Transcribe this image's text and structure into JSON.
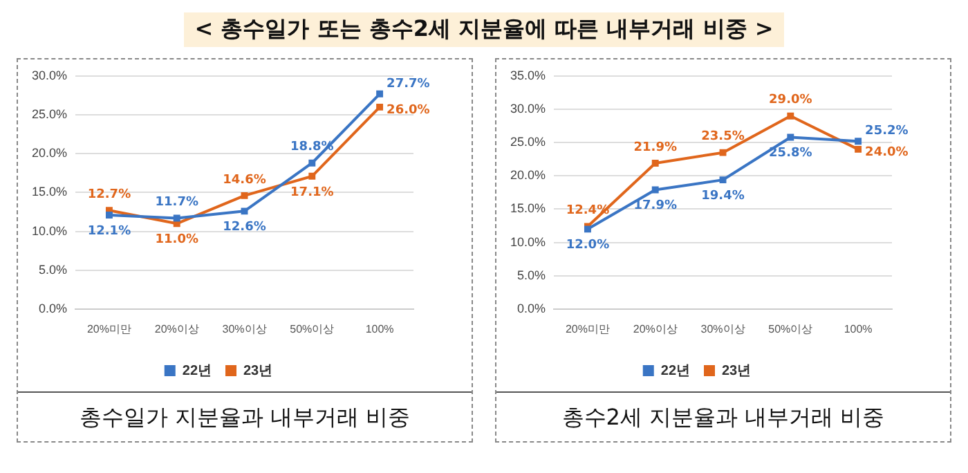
{
  "chart_data": [
    {
      "type": "line",
      "title": "< 총수일가 또는 총수2세 지분율에 따른 내부거래 비중 >",
      "xlabel": "총수일가 지분율과 내부거래 비중",
      "categories": [
        "20%미만",
        "20%이상",
        "30%이상",
        "50%이상",
        "100%"
      ],
      "series": [
        {
          "name": "22년",
          "color": "#3a75c4",
          "values": [
            12.1,
            11.7,
            12.6,
            18.8,
            27.7
          ],
          "value_labels": [
            "12.1%",
            "11.7%",
            "12.6%",
            "18.8%",
            "27.7%"
          ]
        },
        {
          "name": "23년",
          "color": "#e0661c",
          "values": [
            12.7,
            11.0,
            14.6,
            17.1,
            26.0
          ],
          "value_labels": [
            "12.7%",
            "11.0%",
            "14.6%",
            "17.1%",
            "26.0%"
          ]
        }
      ],
      "ylim": [
        0,
        30
      ],
      "yticks": [
        {
          "value": 0,
          "label": "0.0%"
        },
        {
          "value": 5,
          "label": "5.0%"
        },
        {
          "value": 10,
          "label": "10.0%"
        },
        {
          "value": 15,
          "label": "15.0%"
        },
        {
          "value": 20,
          "label": "20.0%"
        },
        {
          "value": 25,
          "label": "25.0%"
        },
        {
          "value": 30,
          "label": "30.0%"
        }
      ],
      "grid": "y",
      "legend": "bottom",
      "marker": "square",
      "line_style": "solid"
    },
    {
      "type": "line",
      "xlabel": "총수2세 지분율과 내부거래 비중",
      "categories": [
        "20%미만",
        "20%이상",
        "30%이상",
        "50%이상",
        "100%"
      ],
      "series": [
        {
          "name": "22년",
          "color": "#3a75c4",
          "values": [
            12.0,
            17.9,
            19.4,
            25.8,
            25.2
          ],
          "value_labels": [
            "12.0%",
            "17.9%",
            "19.4%",
            "25.8%",
            "25.2%"
          ]
        },
        {
          "name": "23년",
          "color": "#e0661c",
          "values": [
            12.4,
            21.9,
            23.5,
            29.0,
            24.0
          ],
          "value_labels": [
            "12.4%",
            "21.9%",
            "23.5%",
            "29.0%",
            "24.0%"
          ]
        }
      ],
      "ylim": [
        0,
        35
      ],
      "yticks": [
        {
          "value": 0,
          "label": "0.0%"
        },
        {
          "value": 5,
          "label": "5.0%"
        },
        {
          "value": 10,
          "label": "10.0%"
        },
        {
          "value": 15,
          "label": "15.0%"
        },
        {
          "value": 20,
          "label": "20.0%"
        },
        {
          "value": 25,
          "label": "25.0%"
        },
        {
          "value": 30,
          "label": "30.0%"
        },
        {
          "value": 35,
          "label": "35.0%"
        }
      ],
      "grid": "y",
      "legend": "bottom",
      "marker": "square",
      "line_style": "solid"
    }
  ]
}
